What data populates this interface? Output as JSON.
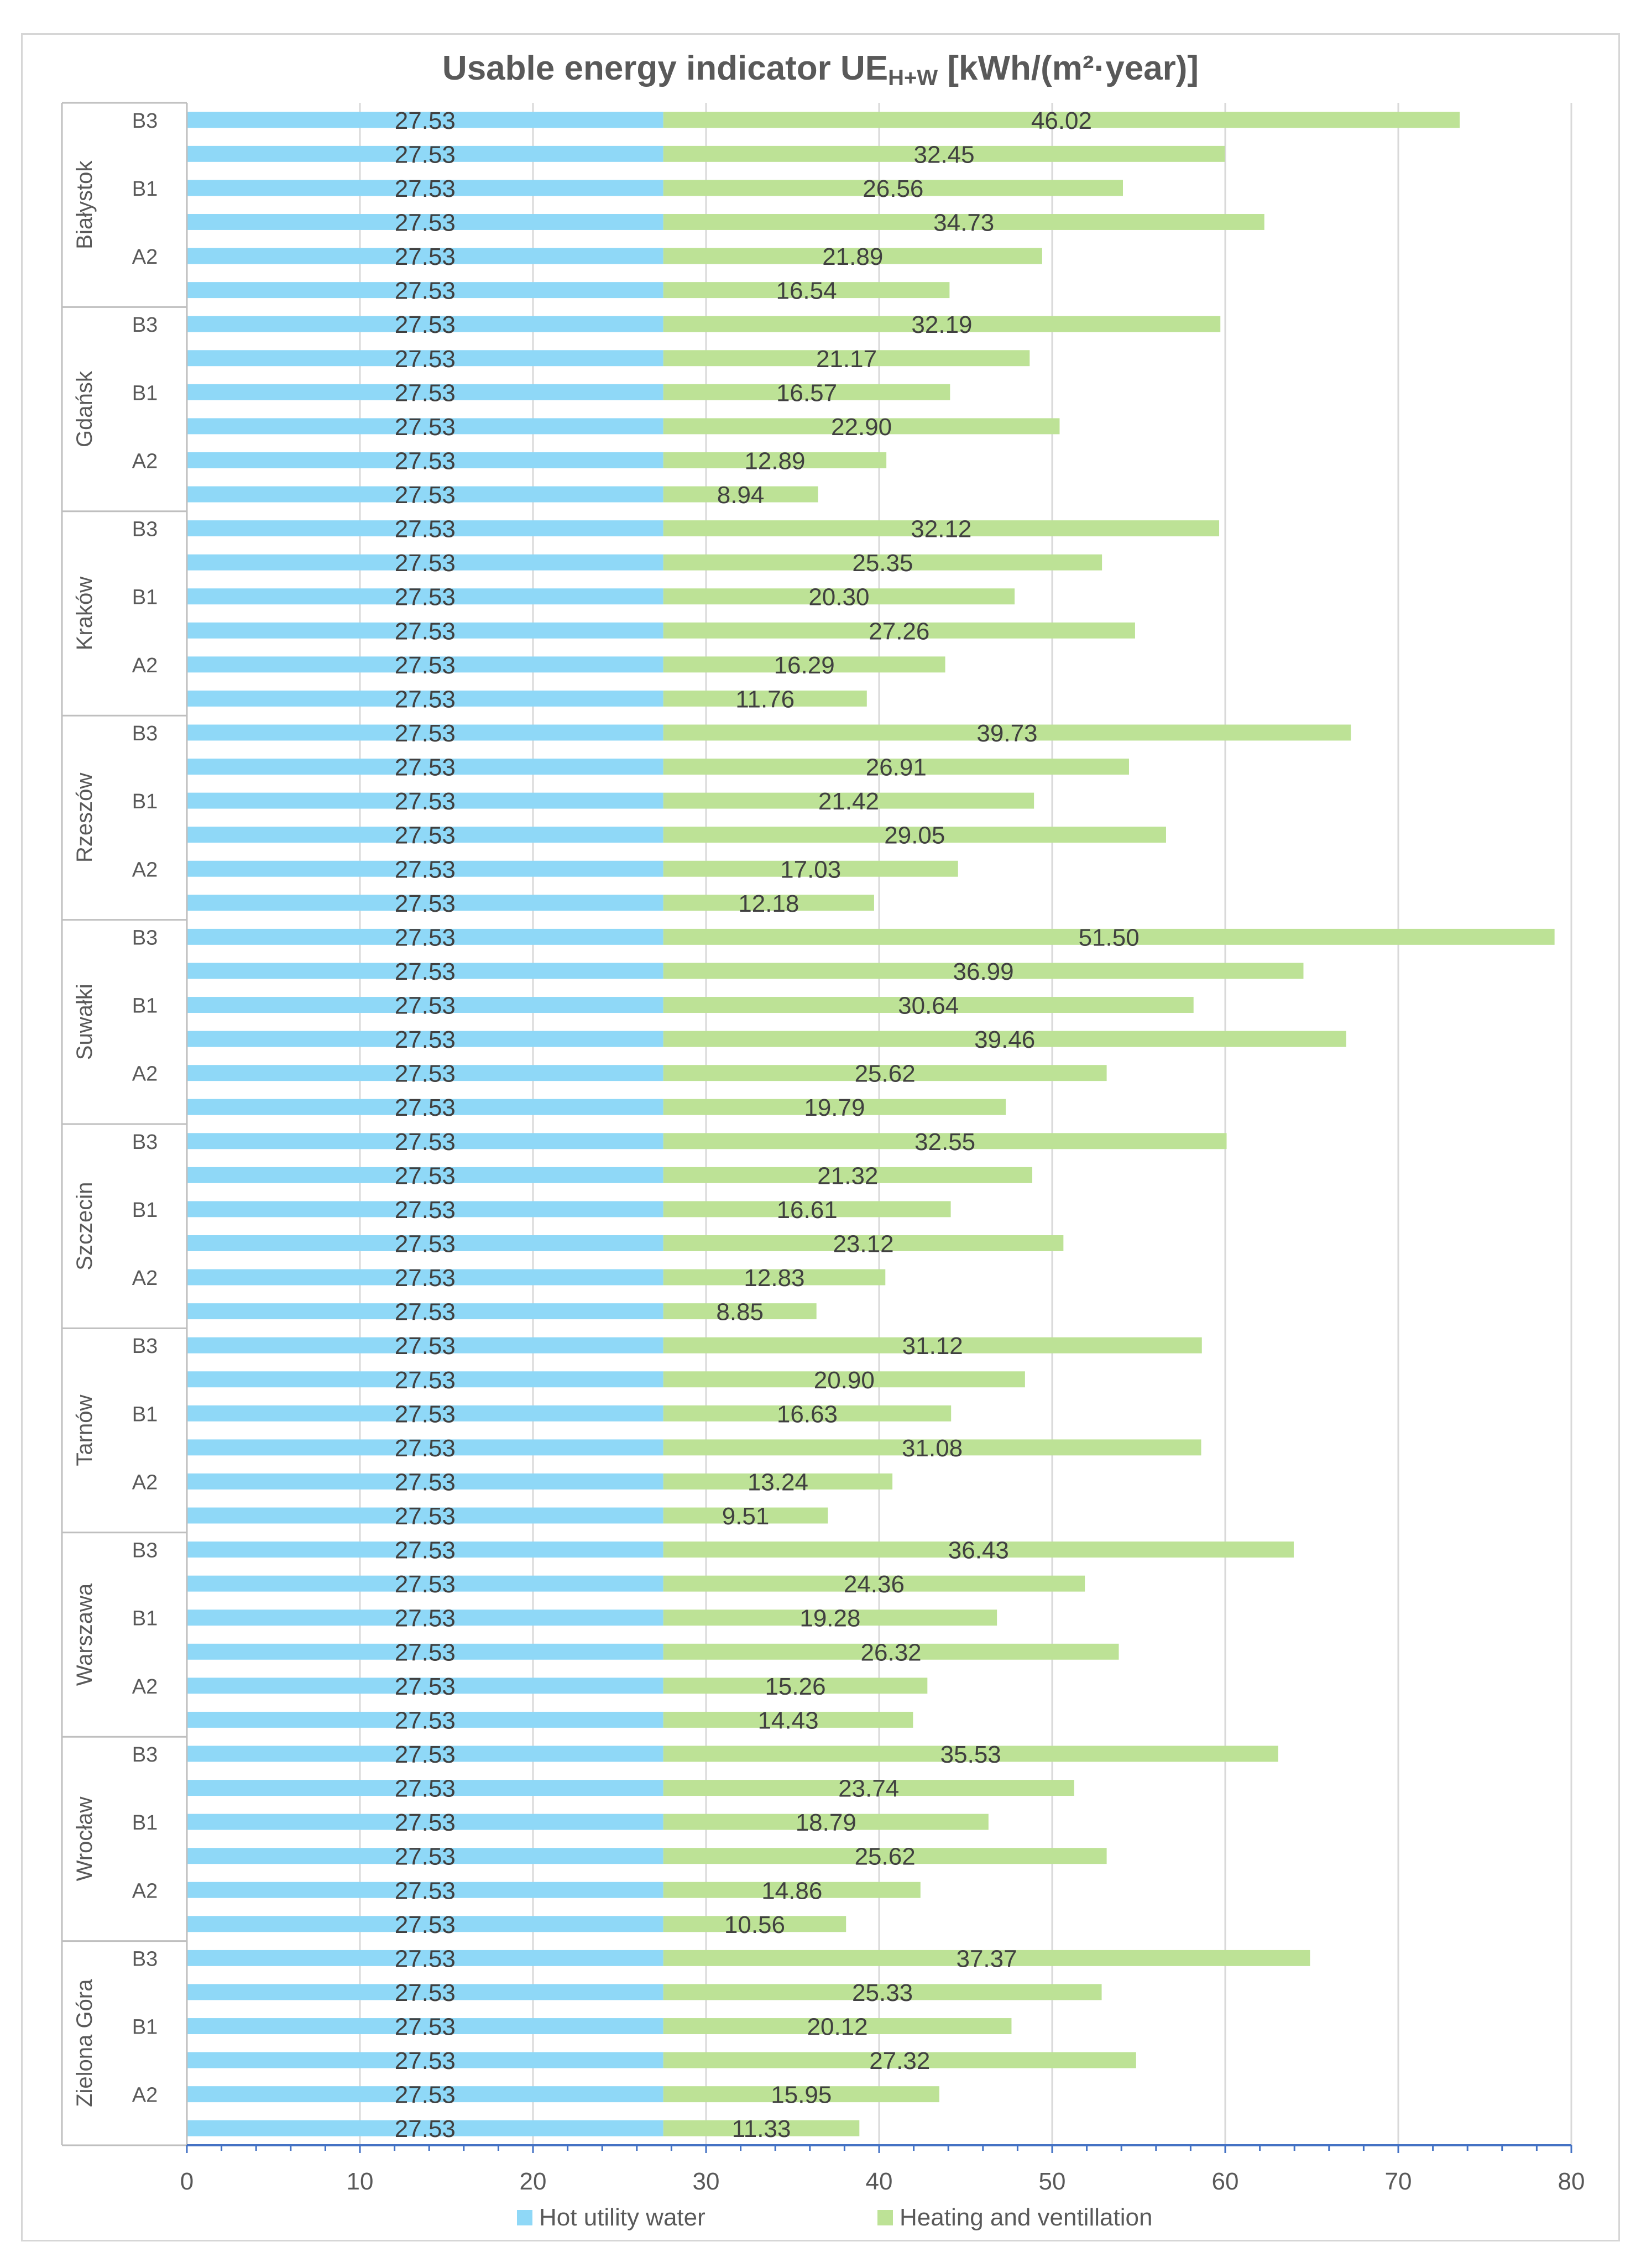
{
  "chart_data": {
    "type": "bar",
    "orientation": "horizontal",
    "stacked": true,
    "title_main": "Usable energy indicator UE",
    "title_sub": "H+W",
    "title_unit": " [kWh/(m²·year)]",
    "xlim": [
      0,
      80
    ],
    "x_ticks": [
      "0",
      "10",
      "20",
      "30",
      "40",
      "50",
      "60",
      "70",
      "80"
    ],
    "grid": true,
    "legend_position": "bottom",
    "groups": [
      "Białystok",
      "Gdańsk",
      "Kraków",
      "Rzeszów",
      "Suwałki",
      "Szczecin",
      "Tarnów",
      "Warszawa",
      "Wrocław",
      "Zielona Góra"
    ],
    "category_labels": [
      "B3",
      "",
      "B1",
      "",
      "A2",
      ""
    ],
    "series": [
      {
        "name": "Hot utility water",
        "color": "#8fd8f7",
        "labels": [
          [
            "27.53",
            "27.53",
            "27.53",
            "27.53",
            "27.53",
            "27.53"
          ],
          [
            "27.53",
            "27.53",
            "27.53",
            "27.53",
            "27.53",
            "27.53"
          ],
          [
            "27.53",
            "27.53",
            "27.53",
            "27.53",
            "27.53",
            "27.53"
          ],
          [
            "27.53",
            "27.53",
            "27.53",
            "27.53",
            "27.53",
            "27.53"
          ],
          [
            "27.53",
            "27.53",
            "27.53",
            "27.53",
            "27.53",
            "27.53"
          ],
          [
            "27.53",
            "27.53",
            "27.53",
            "27.53",
            "27.53",
            "27.53"
          ],
          [
            "27.53",
            "27.53",
            "27.53",
            "27.53",
            "27.53",
            "27.53"
          ],
          [
            "27.53",
            "27.53",
            "27.53",
            "27.53",
            "27.53",
            "27.53"
          ],
          [
            "27.53",
            "27.53",
            "27.53",
            "27.53",
            "27.53",
            "27.53"
          ],
          [
            "27.53",
            "27.53",
            "27.53",
            "27.53",
            "27.53",
            "27.53"
          ]
        ]
      },
      {
        "name": "Heating and ventillation",
        "color": "#bde296",
        "labels": [
          [
            "46.02",
            "32.45",
            "26.56",
            "34.73",
            "21.89",
            "16.54"
          ],
          [
            "32.19",
            "21.17",
            "16.57",
            "22.90",
            "12.89",
            "8.94"
          ],
          [
            "32.12",
            "25.35",
            "20.30",
            "27.26",
            "16.29",
            "11.76"
          ],
          [
            "39.73",
            "26.91",
            "21.42",
            "29.05",
            "17.03",
            "12.18"
          ],
          [
            "51.50",
            "36.99",
            "30.64",
            "39.46",
            "25.62",
            "19.79"
          ],
          [
            "32.55",
            "21.32",
            "16.61",
            "23.12",
            "12.83",
            "8.85"
          ],
          [
            "31.12",
            "20.90",
            "16.63",
            "31.08",
            "13.24",
            "9.51"
          ],
          [
            "36.43",
            "24.36",
            "19.28",
            "26.32",
            "15.26",
            "14.43"
          ],
          [
            "35.53",
            "23.74",
            "18.79",
            "25.62",
            "14.86",
            "10.56"
          ],
          [
            "37.37",
            "25.33",
            "20.12",
            "27.32",
            "15.95",
            "11.33"
          ]
        ]
      }
    ]
  }
}
